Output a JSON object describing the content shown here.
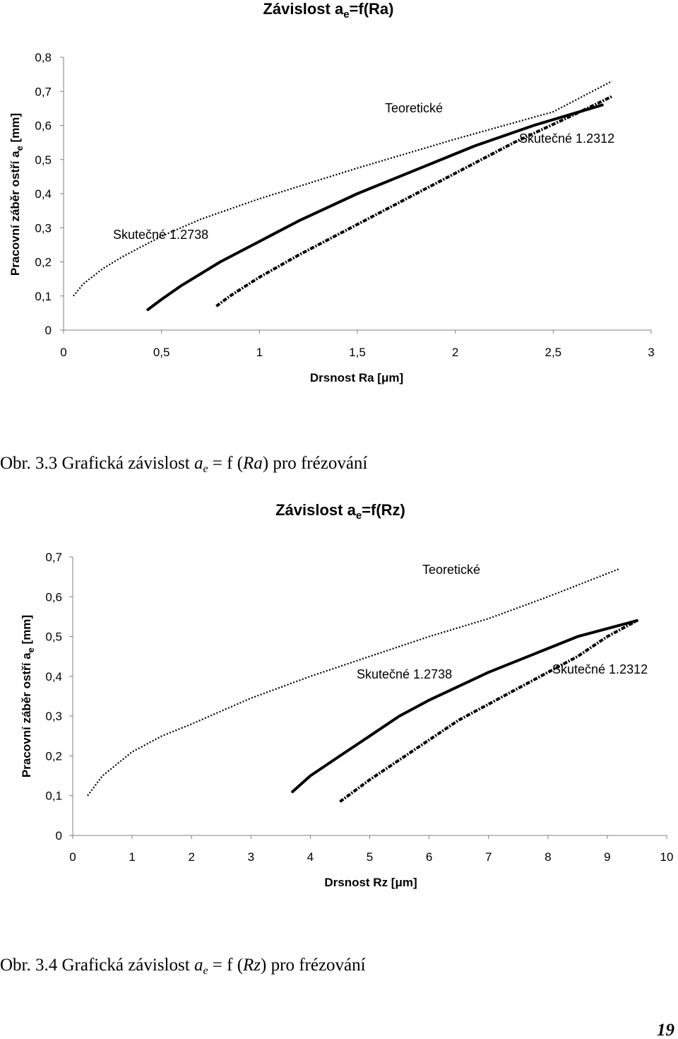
{
  "chart_data": [
    {
      "type": "line",
      "title": "Závislost ae=f(Ra)",
      "title_main": "Závislost a",
      "title_sub": "e",
      "title_tail": "=f(Ra)",
      "xlabel": "Drsnost Ra [μm]",
      "ylabel": "Pracovní záběr ostří ae [mm]",
      "ylabel_main": "Pracovní záběr ostří a",
      "ylabel_sub": "e",
      "ylabel_tail": " [mm]",
      "xlim": [
        0,
        3
      ],
      "ylim": [
        0,
        0.8
      ],
      "x_ticks": [
        "0",
        "0,5",
        "1",
        "1,5",
        "2",
        "2,5",
        "3"
      ],
      "y_ticks": [
        "0",
        "0,1",
        "0,2",
        "0,3",
        "0,4",
        "0,5",
        "0,6",
        "0,7",
        "0,8"
      ],
      "grid": false,
      "series": [
        {
          "name": "Teoretické",
          "style": "dotted",
          "x": [
            0.05,
            0.1,
            0.2,
            0.3,
            0.5,
            0.7,
            1.0,
            1.5,
            2.0,
            2.5,
            2.8
          ],
          "y": [
            0.1,
            0.135,
            0.18,
            0.215,
            0.275,
            0.325,
            0.385,
            0.475,
            0.56,
            0.64,
            0.73
          ]
        },
        {
          "name": "Skutečné 1.2738",
          "style": "solid",
          "x": [
            0.43,
            0.5,
            0.6,
            0.8,
            1.0,
            1.2,
            1.5,
            1.8,
            2.1,
            2.4,
            2.75
          ],
          "y": [
            0.06,
            0.09,
            0.13,
            0.2,
            0.26,
            0.32,
            0.4,
            0.47,
            0.54,
            0.6,
            0.66
          ]
        },
        {
          "name": "Skutečné 1.2312",
          "style": "dashdot",
          "x": [
            0.78,
            0.85,
            1.0,
            1.2,
            1.4,
            1.6,
            1.8,
            2.0,
            2.3,
            2.6,
            2.8
          ],
          "y": [
            0.07,
            0.1,
            0.155,
            0.22,
            0.28,
            0.34,
            0.4,
            0.46,
            0.55,
            0.63,
            0.685
          ]
        }
      ],
      "annotations": [
        "Teoretické",
        "Skutečné 1.2312",
        "Skutečné 1.2738"
      ]
    },
    {
      "type": "line",
      "title": "Závislost ae=f(Rz)",
      "title_main": "Závislost a",
      "title_sub": "e",
      "title_tail": "=f(Rz)",
      "xlabel": "Drsnost Rz [μm]",
      "ylabel": "Pracovní záběr ostří ae [mm]",
      "ylabel_main": "Pracovní záběr ostří a",
      "ylabel_sub": "e",
      "ylabel_tail": " [mm]",
      "xlim": [
        0,
        10
      ],
      "ylim": [
        0,
        0.7
      ],
      "x_ticks": [
        "0",
        "1",
        "2",
        "3",
        "4",
        "5",
        "6",
        "7",
        "8",
        "9",
        "10"
      ],
      "y_ticks": [
        "0",
        "0,1",
        "0,2",
        "0,3",
        "0,4",
        "0,5",
        "0,6",
        "0,7"
      ],
      "grid": false,
      "series": [
        {
          "name": "Teoretické",
          "style": "dotted",
          "x": [
            0.25,
            0.5,
            1.0,
            1.5,
            2.0,
            3.0,
            4.0,
            5.0,
            6.0,
            7.0,
            8.0,
            9.2
          ],
          "y": [
            0.1,
            0.15,
            0.21,
            0.25,
            0.28,
            0.345,
            0.4,
            0.45,
            0.5,
            0.545,
            0.6,
            0.67
          ]
        },
        {
          "name": "Skutečné 1.2738",
          "style": "solid",
          "x": [
            3.7,
            4.0,
            4.5,
            5.0,
            5.5,
            6.0,
            6.5,
            7.0,
            7.5,
            8.0,
            8.5,
            9.0,
            9.5
          ],
          "y": [
            0.11,
            0.15,
            0.2,
            0.25,
            0.3,
            0.34,
            0.375,
            0.41,
            0.44,
            0.47,
            0.5,
            0.52,
            0.54
          ]
        },
        {
          "name": "Skutečné 1.2312",
          "style": "dashdot",
          "x": [
            4.5,
            5.0,
            5.5,
            6.0,
            6.5,
            7.0,
            7.5,
            8.0,
            8.5,
            9.0,
            9.5
          ],
          "y": [
            0.085,
            0.14,
            0.19,
            0.24,
            0.29,
            0.33,
            0.37,
            0.41,
            0.45,
            0.5,
            0.54
          ]
        }
      ],
      "annotations": [
        "Teoretické",
        "Skutečné 1.2738",
        "Skutečné 1.2312"
      ]
    }
  ],
  "captions": [
    {
      "prefix": "Obr. 3.3 Grafická závislost ",
      "var_main": "a",
      "var_sub": "e",
      "mid": " = f (",
      "arg": "Ra",
      "suffix": ") pro frézování"
    },
    {
      "prefix": "Obr. 3.4 Grafická závislost ",
      "var_main": "a",
      "var_sub": "e",
      "mid": " = f (",
      "arg": "Rz",
      "suffix": ") pro frézování"
    }
  ],
  "page_number": "19"
}
